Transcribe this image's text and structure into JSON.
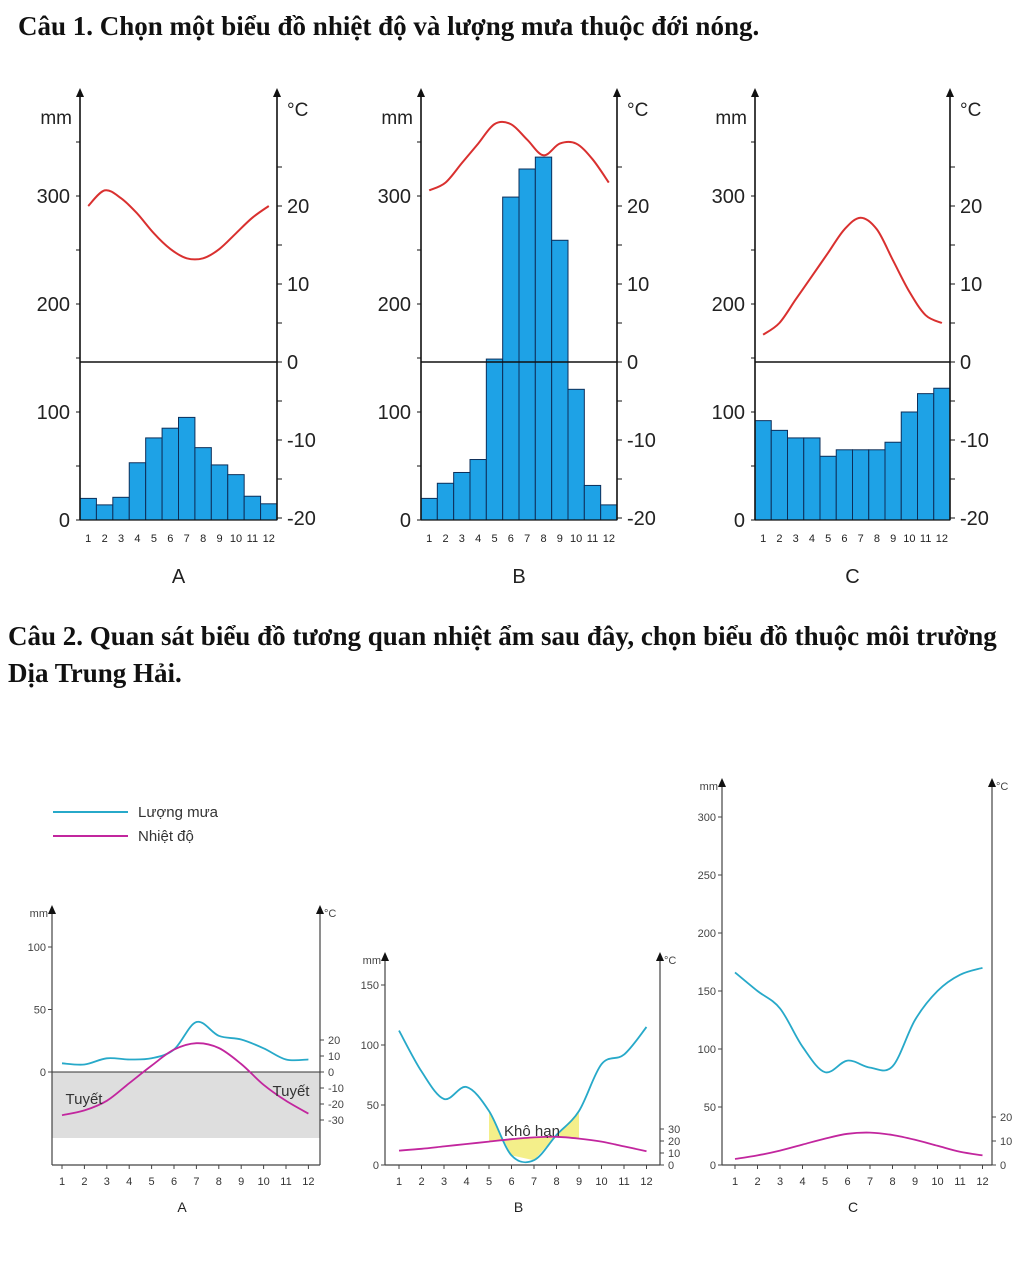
{
  "questions": {
    "q1": "Câu 1. Chọn một biểu đồ nhiệt độ và lượng mưa thuộc đới nóng.",
    "q2": "Câu 2. Quan sát biểu đồ tương quan nhiệt ẩm sau đây, chọn biểu đồ thuộc môi trường Dịa Trung Hải."
  },
  "chart_data": [
    {
      "type": "bar",
      "label": "A",
      "categories": [
        "1",
        "2",
        "3",
        "4",
        "5",
        "6",
        "7",
        "8",
        "9",
        "10",
        "11",
        "12"
      ],
      "ylabel": "mm",
      "y2label": "°C",
      "ylim": [
        0,
        300
      ],
      "y2lim": [
        -20,
        20
      ],
      "yticks": [
        "0",
        "100",
        "200",
        "300"
      ],
      "y2ticks": [
        "-20",
        "-10",
        "0",
        "10",
        "20"
      ],
      "series": [
        {
          "kind": "bar",
          "values": [
            20,
            14,
            21,
            53,
            76,
            85,
            95,
            67,
            51,
            42,
            22,
            15
          ]
        },
        {
          "kind": "line",
          "values": [
            20,
            22,
            21,
            19,
            16.5,
            14.5,
            13.3,
            13.3,
            14.5,
            16.5,
            18.5,
            20
          ]
        }
      ]
    },
    {
      "type": "bar",
      "label": "B",
      "categories": [
        "1",
        "2",
        "3",
        "4",
        "5",
        "6",
        "7",
        "8",
        "9",
        "10",
        "11",
        "12"
      ],
      "ylabel": "mm",
      "y2label": "°C",
      "ylim": [
        0,
        300
      ],
      "y2lim": [
        -20,
        20
      ],
      "yticks": [
        "0",
        "100",
        "200",
        "300"
      ],
      "y2ticks": [
        "-20",
        "-10",
        "0",
        "10",
        "20"
      ],
      "series": [
        {
          "kind": "bar",
          "values": [
            20,
            34,
            44,
            56,
            149,
            299,
            325,
            336,
            259,
            121,
            32,
            14
          ]
        },
        {
          "kind": "line",
          "values": [
            22,
            23,
            25.5,
            28,
            30.5,
            30.5,
            28.5,
            26.5,
            28,
            28,
            26,
            23
          ]
        }
      ]
    },
    {
      "type": "bar",
      "label": "C",
      "categories": [
        "1",
        "2",
        "3",
        "4",
        "5",
        "6",
        "7",
        "8",
        "9",
        "10",
        "11",
        "12"
      ],
      "ylabel": "mm",
      "y2label": "°C",
      "ylim": [
        0,
        300
      ],
      "y2lim": [
        -20,
        20
      ],
      "yticks": [
        "0",
        "100",
        "200",
        "300"
      ],
      "y2ticks": [
        "-20",
        "-10",
        "0",
        "10",
        "20"
      ],
      "series": [
        {
          "kind": "bar",
          "values": [
            92,
            83,
            76,
            76,
            59,
            65,
            65,
            65,
            72,
            100,
            117,
            122
          ]
        },
        {
          "kind": "line",
          "values": [
            3.5,
            5,
            8,
            11,
            14,
            17,
            18.5,
            17,
            13,
            9,
            6,
            5
          ]
        }
      ]
    },
    {
      "type": "line",
      "label": "A",
      "categories": [
        "1",
        "2",
        "3",
        "4",
        "5",
        "6",
        "7",
        "8",
        "9",
        "10",
        "11",
        "12"
      ],
      "ylabel": "mm",
      "y2label": "°C",
      "ylim": [
        0,
        100
      ],
      "y2lim": [
        -30,
        20
      ],
      "yticks": [
        "0",
        "50",
        "100"
      ],
      "y2ticks": [
        "-30",
        "-20",
        "-10",
        "0",
        "10",
        "20"
      ],
      "legend": [
        "Lượng mưa",
        "Nhiệt độ"
      ],
      "annotations": [
        "Tuyết",
        "Tuyết"
      ],
      "series": [
        {
          "name": "Lượng mưa",
          "values": [
            7,
            6,
            11,
            10,
            11,
            18,
            40,
            29,
            26,
            19,
            10,
            10
          ]
        },
        {
          "name": "Nhiệt độ",
          "values": [
            -27,
            -24,
            -18,
            -7,
            4,
            14,
            18,
            15,
            5,
            -8,
            -18,
            -26
          ]
        }
      ]
    },
    {
      "type": "line",
      "label": "B",
      "categories": [
        "1",
        "2",
        "3",
        "4",
        "5",
        "6",
        "7",
        "8",
        "9",
        "10",
        "11",
        "12"
      ],
      "ylabel": "mm",
      "y2label": "°C",
      "ylim": [
        0,
        150
      ],
      "y2lim": [
        0,
        30
      ],
      "yticks": [
        "0",
        "50",
        "100",
        "150"
      ],
      "y2ticks": [
        "0",
        "10",
        "20",
        "30"
      ],
      "annotations": [
        "Khô hạn"
      ],
      "series": [
        {
          "name": "Lượng mưa",
          "values": [
            112,
            78,
            55,
            65,
            45,
            8,
            4,
            25,
            45,
            84,
            92,
            115
          ]
        },
        {
          "name": "Nhiệt độ",
          "values": [
            12,
            13.5,
            15.5,
            17.5,
            19.5,
            21.5,
            23,
            23.5,
            22,
            19.5,
            15.5,
            11.5
          ]
        }
      ]
    },
    {
      "type": "line",
      "label": "C",
      "categories": [
        "1",
        "2",
        "3",
        "4",
        "5",
        "6",
        "7",
        "8",
        "9",
        "10",
        "11",
        "12"
      ],
      "ylabel": "mm",
      "y2label": "°C",
      "ylim": [
        0,
        300
      ],
      "y2lim": [
        0,
        20
      ],
      "yticks": [
        "0",
        "50",
        "100",
        "150",
        "200",
        "250",
        "300"
      ],
      "y2ticks": [
        "0",
        "10",
        "20"
      ],
      "series": [
        {
          "name": "Lượng mưa",
          "values": [
            166,
            150,
            135,
            102,
            80,
            90,
            84,
            85,
            125,
            150,
            164,
            170
          ]
        },
        {
          "name": "Nhiệt độ",
          "values": [
            2.5,
            4,
            6,
            8.5,
            11,
            13,
            13.5,
            12.5,
            10.5,
            8,
            5.5,
            4
          ]
        }
      ]
    }
  ]
}
